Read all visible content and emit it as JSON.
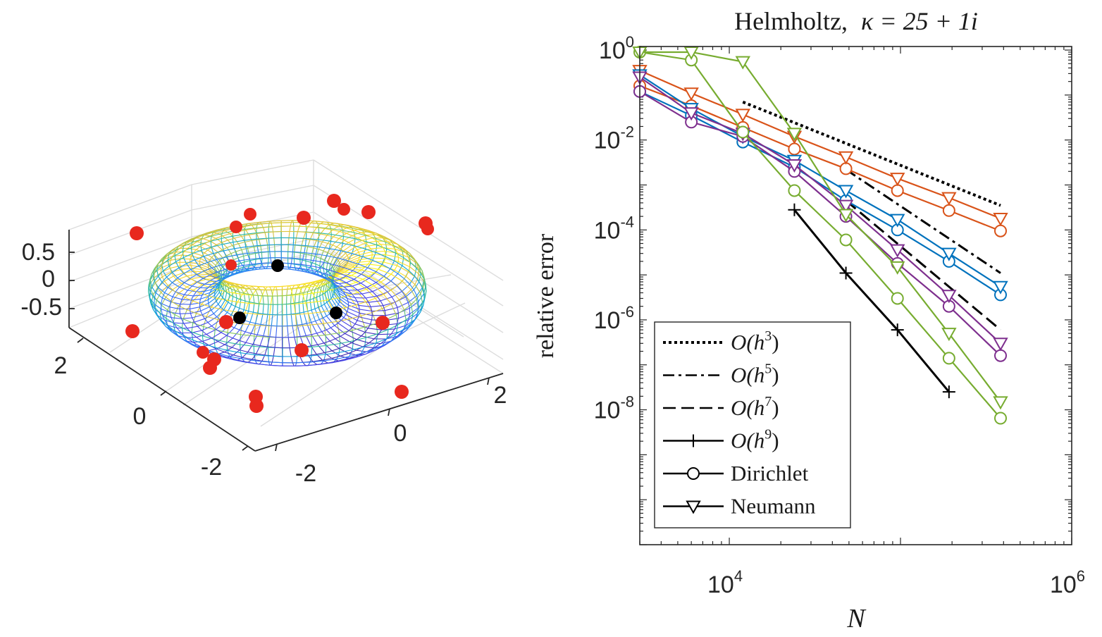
{
  "chart_data": [
    {
      "type": "scatter3d",
      "surface": "torus wireframe (parula colormap)",
      "z_ticks": [
        "0.5",
        "0",
        "-0.5"
      ],
      "x_ticks": [
        "2",
        "0",
        "-2"
      ],
      "y_ticks": [
        "-2",
        "0",
        "2"
      ],
      "colors": {
        "points_outside": "#e8281e",
        "points_inside": "#000000"
      }
    },
    {
      "type": "line",
      "title_prefix": "Helmholtz,",
      "title_math": "κ = 25 + 1i",
      "xlabel": "N",
      "ylabel": "relative error",
      "xscale": "log",
      "yscale": "log",
      "xlim": [
        3000,
        1000000
      ],
      "ylim": [
        1e-11,
        1.2
      ],
      "x_ticks": [
        {
          "value": 10000,
          "base": "10",
          "exp": "4"
        },
        {
          "value": 1000000,
          "base": "10",
          "exp": "6"
        }
      ],
      "y_ticks": [
        {
          "value": 1,
          "base": "10",
          "exp": "0"
        },
        {
          "value": 0.01,
          "base": "10",
          "exp": "-2"
        },
        {
          "value": 0.0001,
          "base": "10",
          "exp": "-4"
        },
        {
          "value": 1e-06,
          "base": "10",
          "exp": "-6"
        },
        {
          "value": 1e-08,
          "base": "10",
          "exp": "-8"
        }
      ],
      "series": [
        {
          "color": "#d95319",
          "marker": "circle",
          "x": [
            3000,
            6000,
            12000,
            24000,
            48000,
            96000,
            192000,
            384000
          ],
          "y": [
            0.16,
            0.058,
            0.019,
            0.0063,
            0.0023,
            0.00075,
            0.00027,
            9.5e-05
          ]
        },
        {
          "color": "#d95319",
          "marker": "triangle",
          "x": [
            3000,
            6000,
            12000,
            24000,
            48000,
            96000,
            192000,
            384000
          ],
          "y": [
            0.35,
            0.11,
            0.037,
            0.012,
            0.0042,
            0.0014,
            0.00052,
            0.00018
          ]
        },
        {
          "color": "#0072bd",
          "marker": "circle",
          "x": [
            3000,
            6000,
            12000,
            24000,
            48000,
            96000,
            192000,
            384000
          ],
          "y": [
            0.12,
            0.035,
            0.009,
            0.0025,
            0.00045,
            0.0001,
            2e-05,
            3.6e-06
          ]
        },
        {
          "color": "#0072bd",
          "marker": "triangle",
          "x": [
            3000,
            6000,
            12000,
            24000,
            48000,
            96000,
            192000,
            384000
          ],
          "y": [
            0.28,
            0.05,
            0.012,
            0.0035,
            0.00075,
            0.00017,
            3e-05,
            5.5e-06
          ]
        },
        {
          "color": "#7e2f8e",
          "marker": "circle",
          "x": [
            3000,
            6000,
            12000,
            24000,
            48000,
            96000,
            192000,
            384000
          ],
          "y": [
            0.12,
            0.025,
            0.012,
            0.002,
            0.0002,
            1.8e-05,
            2e-06,
            1.6e-07
          ]
        },
        {
          "color": "#7e2f8e",
          "marker": "triangle",
          "x": [
            3000,
            6000,
            12000,
            24000,
            48000,
            96000,
            192000,
            384000
          ],
          "y": [
            0.25,
            0.04,
            0.014,
            0.0028,
            0.00035,
            3.6e-05,
            3.5e-06,
            3e-07
          ]
        },
        {
          "color": "#77ac30",
          "marker": "circle",
          "x": [
            3000,
            6000,
            12000,
            24000,
            48000,
            96000,
            192000,
            384000
          ],
          "y": [
            0.9,
            0.6,
            0.015,
            0.00075,
            6e-05,
            3e-06,
            1.4e-07,
            6.5e-09
          ]
        },
        {
          "color": "#77ac30",
          "marker": "triangle",
          "x": [
            3000,
            6000,
            12000,
            24000,
            48000,
            96000,
            192000,
            384000
          ],
          "y": [
            0.9,
            0.9,
            0.55,
            0.014,
            0.00022,
            1.5e-05,
            5e-07,
            1.5e-08
          ]
        }
      ],
      "reference_lines": [
        {
          "label": "O(h3)",
          "style": "dotted",
          "marker": "none",
          "x": [
            12000,
            384000
          ],
          "y": [
            0.07,
            0.00035
          ]
        },
        {
          "label": "O(h5)",
          "style": "dashdot",
          "marker": "none",
          "x": [
            48000,
            384000
          ],
          "y": [
            0.0022,
            1.1e-05
          ]
        },
        {
          "label": "O(h7)",
          "style": "dashed",
          "marker": "none",
          "x": [
            48000,
            384000
          ],
          "y": [
            0.00045,
            6e-07
          ]
        },
        {
          "label": "O(h9)",
          "style": "solid",
          "marker": "plus",
          "x": [
            24000,
            48000,
            96000,
            192000
          ],
          "y": [
            0.00028,
            1.1e-05,
            6e-07,
            2.5e-08
          ]
        }
      ],
      "legend": {
        "placement": "bottom-left",
        "entries": [
          {
            "base": "O(h",
            "exp": "3",
            "tail": ")",
            "style": "dotted",
            "marker": "none"
          },
          {
            "base": "O(h",
            "exp": "5",
            "tail": ")",
            "style": "dashdot",
            "marker": "none"
          },
          {
            "base": "O(h",
            "exp": "7",
            "tail": ")",
            "style": "dashed",
            "marker": "none"
          },
          {
            "base": "O(h",
            "exp": "9",
            "tail": ")",
            "style": "solid",
            "marker": "plus"
          },
          {
            "base": "Dirichlet",
            "exp": "",
            "tail": "",
            "style": "solid",
            "marker": "circle"
          },
          {
            "base": "Neumann",
            "exp": "",
            "tail": "",
            "style": "solid",
            "marker": "triangle"
          }
        ]
      }
    }
  ]
}
